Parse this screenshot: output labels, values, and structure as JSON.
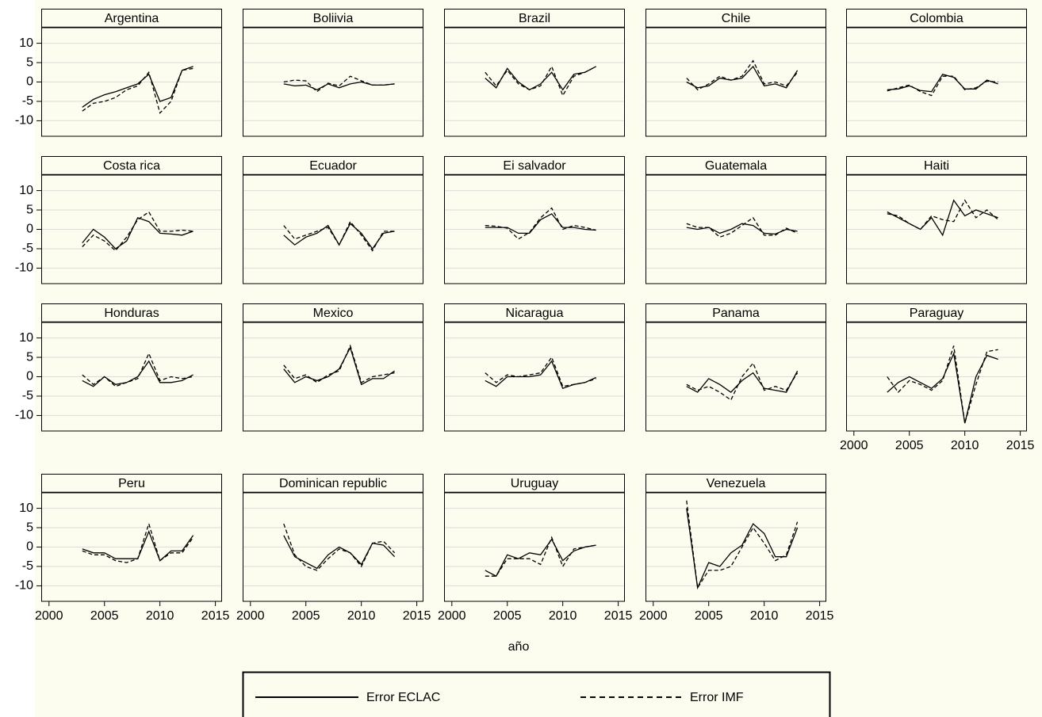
{
  "axes": {
    "xlim": [
      1999.3,
      2015.6
    ],
    "xticks": [
      2000,
      2005,
      2010,
      2015
    ],
    "ylim": [
      -14,
      14
    ],
    "yticks": [
      -10,
      -5,
      0,
      5,
      10
    ],
    "grid": true,
    "xlabel": "año"
  },
  "chart_data": [
    {
      "type": "line",
      "title": "Argentina",
      "x": [
        2003,
        2004,
        2005,
        2006,
        2007,
        2008,
        2009,
        2010,
        2011,
        2012,
        2013
      ],
      "series": [
        {
          "name": "Error ECLAC",
          "color": "#000000",
          "dash": "solid",
          "values": [
            -6.5,
            -4.5,
            -3.3,
            -2.5,
            -1.5,
            -0.5,
            2,
            -5,
            -4,
            3,
            4
          ]
        },
        {
          "name": "Error IMF",
          "color": "#000000",
          "dash": "dashed",
          "values": [
            -7.5,
            -5.5,
            -5,
            -4,
            -2,
            -1,
            2.5,
            -8,
            -5,
            3,
            3.5
          ]
        }
      ]
    },
    {
      "type": "line",
      "title": "Boliivia",
      "x": [
        2003,
        2004,
        2005,
        2006,
        2007,
        2008,
        2009,
        2010,
        2011,
        2012,
        2013
      ],
      "series": [
        {
          "name": "Error ECLAC",
          "color": "#000000",
          "dash": "solid",
          "values": [
            -0.5,
            -1,
            -0.8,
            -2,
            -0.5,
            -1.5,
            -0.5,
            0,
            -0.8,
            -0.8,
            -0.5
          ]
        },
        {
          "name": "Error IMF",
          "color": "#000000",
          "dash": "dashed",
          "values": [
            0,
            0.5,
            0.3,
            -2.5,
            -0.3,
            -1,
            1.5,
            0.3,
            -0.8,
            -0.8,
            -0.5
          ]
        }
      ]
    },
    {
      "type": "line",
      "title": "Brazil",
      "x": [
        2003,
        2004,
        2005,
        2006,
        2007,
        2008,
        2009,
        2010,
        2011,
        2012,
        2013
      ],
      "series": [
        {
          "name": "Error ECLAC",
          "color": "#000000",
          "dash": "solid",
          "values": [
            1,
            -1.5,
            3.5,
            0,
            -2,
            -0.5,
            2.5,
            -2,
            2,
            2.5,
            4
          ]
        },
        {
          "name": "Error IMF",
          "color": "#000000",
          "dash": "dashed",
          "values": [
            2.5,
            -1,
            3,
            -0.5,
            -2,
            -1,
            4,
            -3.5,
            1.5,
            2.5,
            4
          ]
        }
      ]
    },
    {
      "type": "line",
      "title": "Chile",
      "x": [
        2003,
        2004,
        2005,
        2006,
        2007,
        2008,
        2009,
        2010,
        2011,
        2012,
        2013
      ],
      "series": [
        {
          "name": "Error ECLAC",
          "color": "#000000",
          "dash": "solid",
          "values": [
            0,
            -1.5,
            -1,
            1,
            0.5,
            1,
            4,
            -1,
            -0.5,
            -1.5,
            3
          ]
        },
        {
          "name": "Error IMF",
          "color": "#000000",
          "dash": "dashed",
          "values": [
            1,
            -2,
            -0.5,
            1.5,
            0.5,
            1.5,
            5.5,
            -0.5,
            0,
            -1,
            2.5
          ]
        }
      ]
    },
    {
      "type": "line",
      "title": "Colombia",
      "x": [
        2003,
        2004,
        2005,
        2006,
        2007,
        2008,
        2009,
        2010,
        2011,
        2012,
        2013
      ],
      "series": [
        {
          "name": "Error ECLAC",
          "color": "#000000",
          "dash": "solid",
          "values": [
            -2,
            -1.8,
            -1,
            -2.2,
            -2.5,
            2,
            1.2,
            -1.8,
            -1.8,
            0.5,
            -0.5
          ]
        },
        {
          "name": "Error IMF",
          "color": "#000000",
          "dash": "dashed",
          "values": [
            -2.3,
            -1.5,
            -0.8,
            -2.5,
            -3.5,
            1.5,
            1.5,
            -2,
            -1.5,
            0.2,
            0
          ]
        }
      ]
    },
    {
      "type": "line",
      "title": "Costa rica",
      "x": [
        2003,
        2004,
        2005,
        2006,
        2007,
        2008,
        2009,
        2010,
        2011,
        2012,
        2013
      ],
      "series": [
        {
          "name": "Error ECLAC",
          "color": "#000000",
          "dash": "solid",
          "values": [
            -3.5,
            0,
            -2,
            -5,
            -3,
            3,
            2,
            -1,
            -1.2,
            -1.5,
            -0.5
          ]
        },
        {
          "name": "Error IMF",
          "color": "#000000",
          "dash": "dashed",
          "values": [
            -4.5,
            -1.5,
            -3,
            -5.5,
            -2,
            2.5,
            4.5,
            -0.5,
            -0.5,
            -0.2,
            -0.5
          ]
        }
      ]
    },
    {
      "type": "line",
      "title": "Ecuador",
      "x": [
        2003,
        2004,
        2005,
        2006,
        2007,
        2008,
        2009,
        2010,
        2011,
        2012,
        2013
      ],
      "series": [
        {
          "name": "Error ECLAC",
          "color": "#000000",
          "dash": "solid",
          "values": [
            -1.5,
            -4,
            -2,
            -1,
            1,
            -4,
            1.5,
            -1,
            -5,
            -1,
            -0.5
          ]
        },
        {
          "name": "Error IMF",
          "color": "#000000",
          "dash": "dashed",
          "values": [
            1,
            -2.5,
            -1.5,
            -0.5,
            0.5,
            -4,
            2,
            -1.5,
            -5.5,
            -0.5,
            -0.5
          ]
        }
      ]
    },
    {
      "type": "line",
      "title": "Ei salvador",
      "x": [
        2003,
        2004,
        2005,
        2006,
        2007,
        2008,
        2009,
        2010,
        2011,
        2012,
        2013
      ],
      "series": [
        {
          "name": "Error ECLAC",
          "color": "#000000",
          "dash": "solid",
          "values": [
            0.5,
            0.5,
            0.5,
            -1,
            -1,
            2.5,
            4,
            0.5,
            0.5,
            0,
            -0.2
          ]
        },
        {
          "name": "Error IMF",
          "color": "#000000",
          "dash": "dashed",
          "values": [
            1,
            0.8,
            0.3,
            -2.5,
            -0.8,
            3,
            5.5,
            0,
            1,
            0.5,
            -0.2
          ]
        }
      ]
    },
    {
      "type": "line",
      "title": "Guatemala",
      "x": [
        2003,
        2004,
        2005,
        2006,
        2007,
        2008,
        2009,
        2010,
        2011,
        2012,
        2013
      ],
      "series": [
        {
          "name": "Error ECLAC",
          "color": "#000000",
          "dash": "solid",
          "values": [
            0.5,
            0,
            0.5,
            -1,
            0,
            1.5,
            1,
            -1,
            -1.2,
            0,
            -0.5
          ]
        },
        {
          "name": "Error IMF",
          "color": "#000000",
          "dash": "dashed",
          "values": [
            1.5,
            0.5,
            0.5,
            -2,
            -1,
            1,
            3,
            -1.5,
            -1.5,
            0.3,
            -1
          ]
        }
      ]
    },
    {
      "type": "line",
      "title": "Haiti",
      "x": [
        2003,
        2004,
        2005,
        2006,
        2007,
        2008,
        2009,
        2010,
        2011,
        2012,
        2013
      ],
      "series": [
        {
          "name": "Error ECLAC",
          "color": "#000000",
          "dash": "solid",
          "values": [
            4.5,
            3,
            1.5,
            0,
            3,
            -1.5,
            7.5,
            3.5,
            5,
            4,
            3
          ]
        },
        {
          "name": "Error IMF",
          "color": "#000000",
          "dash": "dashed",
          "values": [
            4,
            3.5,
            1.5,
            0,
            3.5,
            2.5,
            2,
            7.5,
            3,
            5,
            2.5
          ]
        }
      ]
    },
    {
      "type": "line",
      "title": "Honduras",
      "x": [
        2003,
        2004,
        2005,
        2006,
        2007,
        2008,
        2009,
        2010,
        2011,
        2012,
        2013
      ],
      "series": [
        {
          "name": "Error ECLAC",
          "color": "#000000",
          "dash": "solid",
          "values": [
            -1,
            -2.5,
            0,
            -2,
            -1.5,
            0,
            4,
            -1.5,
            -1.5,
            -1,
            0.5
          ]
        },
        {
          "name": "Error IMF",
          "color": "#000000",
          "dash": "dashed",
          "values": [
            0.5,
            -2,
            0,
            -2.5,
            -1.5,
            -0.5,
            6,
            -1,
            0,
            -0.5,
            0
          ]
        }
      ]
    },
    {
      "type": "line",
      "title": "Mexico",
      "x": [
        2003,
        2004,
        2005,
        2006,
        2007,
        2008,
        2009,
        2010,
        2011,
        2012,
        2013
      ],
      "series": [
        {
          "name": "Error ECLAC",
          "color": "#000000",
          "dash": "solid",
          "values": [
            2,
            -1.5,
            0,
            -1,
            0,
            2,
            7.5,
            -2,
            -0.5,
            -0.5,
            1.5
          ]
        },
        {
          "name": "Error IMF",
          "color": "#000000",
          "dash": "dashed",
          "values": [
            3,
            -0.5,
            0.5,
            -1.5,
            0.5,
            1.5,
            8,
            -1.5,
            0,
            0.5,
            1
          ]
        }
      ]
    },
    {
      "type": "line",
      "title": "Nicaragua",
      "x": [
        2003,
        2004,
        2005,
        2006,
        2007,
        2008,
        2009,
        2010,
        2011,
        2012,
        2013
      ],
      "series": [
        {
          "name": "Error ECLAC",
          "color": "#000000",
          "dash": "solid",
          "values": [
            -1,
            -2.5,
            0,
            0,
            0,
            0.5,
            4,
            -3,
            -2,
            -1.5,
            -0.2
          ]
        },
        {
          "name": "Error IMF",
          "color": "#000000",
          "dash": "dashed",
          "values": [
            1,
            -1.5,
            0.5,
            0,
            0.5,
            1,
            5,
            -2.5,
            -2,
            -1.5,
            -0.5
          ]
        }
      ]
    },
    {
      "type": "line",
      "title": "Panama",
      "x": [
        2003,
        2004,
        2005,
        2006,
        2007,
        2008,
        2009,
        2010,
        2011,
        2012,
        2013
      ],
      "series": [
        {
          "name": "Error ECLAC",
          "color": "#000000",
          "dash": "solid",
          "values": [
            -2.5,
            -4,
            -0.5,
            -2,
            -4,
            -1,
            1,
            -3,
            -3.5,
            -4,
            1.5
          ]
        },
        {
          "name": "Error IMF",
          "color": "#000000",
          "dash": "dashed",
          "values": [
            -2,
            -3.5,
            -2.5,
            -4,
            -6,
            0,
            3.5,
            -3.5,
            -2.5,
            -3.5,
            1
          ]
        }
      ]
    },
    {
      "type": "line",
      "title": "Paraguay",
      "x": [
        2003,
        2004,
        2005,
        2006,
        2007,
        2008,
        2009,
        2010,
        2011,
        2012,
        2013
      ],
      "series": [
        {
          "name": "Error ECLAC",
          "color": "#000000",
          "dash": "solid",
          "values": [
            -4,
            -1.5,
            0,
            -1.5,
            -3,
            -0.5,
            6,
            -12,
            0,
            5.5,
            4.5
          ]
        },
        {
          "name": "Error IMF",
          "color": "#000000",
          "dash": "dashed",
          "values": [
            0,
            -4,
            -1,
            -2,
            -3.5,
            -1,
            8,
            -12,
            -2,
            6.5,
            7
          ]
        }
      ]
    },
    {
      "type": "line",
      "title": "Peru",
      "x": [
        2003,
        2004,
        2005,
        2006,
        2007,
        2008,
        2009,
        2010,
        2011,
        2012,
        2013
      ],
      "series": [
        {
          "name": "Error ECLAC",
          "color": "#000000",
          "dash": "solid",
          "values": [
            -0.5,
            -1.5,
            -1.5,
            -3,
            -3,
            -3,
            4,
            -3.5,
            -1,
            -1,
            3
          ]
        },
        {
          "name": "Error IMF",
          "color": "#000000",
          "dash": "dashed",
          "values": [
            -1,
            -2,
            -2,
            -3.5,
            -4,
            -3,
            6,
            -3.5,
            -1.5,
            -1.5,
            2.5
          ]
        }
      ]
    },
    {
      "type": "line",
      "title": "Dominican republic",
      "x": [
        2003,
        2004,
        2005,
        2006,
        2007,
        2008,
        2009,
        2010,
        2011,
        2012,
        2013
      ],
      "series": [
        {
          "name": "Error ECLAC",
          "color": "#000000",
          "dash": "solid",
          "values": [
            3,
            -2.5,
            -4,
            -5.5,
            -2,
            0,
            -1.5,
            -4.5,
            1,
            0.5,
            -2.5
          ]
        },
        {
          "name": "Error IMF",
          "color": "#000000",
          "dash": "dashed",
          "values": [
            6,
            -2,
            -5,
            -6,
            -3,
            -0.5,
            -1.5,
            -5,
            1,
            1.5,
            -1.5
          ]
        }
      ]
    },
    {
      "type": "line",
      "title": "Uruguay",
      "x": [
        2003,
        2004,
        2005,
        2006,
        2007,
        2008,
        2009,
        2010,
        2011,
        2012,
        2013
      ],
      "series": [
        {
          "name": "Error ECLAC",
          "color": "#000000",
          "dash": "solid",
          "values": [
            -6,
            -7.5,
            -2,
            -3,
            -1.5,
            -2,
            2,
            -3.5,
            -1,
            0,
            0.5
          ]
        },
        {
          "name": "Error IMF",
          "color": "#000000",
          "dash": "dashed",
          "values": [
            -7.5,
            -7.5,
            -3,
            -3,
            -3,
            -4.5,
            2.5,
            -5,
            -0.5,
            0,
            0.5
          ]
        }
      ]
    },
    {
      "type": "line",
      "title": "Venezuela",
      "x": [
        2003,
        2004,
        2005,
        2006,
        2007,
        2008,
        2009,
        2010,
        2011,
        2012,
        2013
      ],
      "series": [
        {
          "name": "Error ECLAC",
          "color": "#000000",
          "dash": "solid",
          "values": [
            10,
            -10.5,
            -4,
            -5,
            -1.5,
            0.5,
            6,
            3.5,
            -2.5,
            -2.5,
            5
          ]
        },
        {
          "name": "Error IMF",
          "color": "#000000",
          "dash": "dashed",
          "values": [
            12,
            -10.5,
            -6,
            -6,
            -5,
            0,
            5,
            1,
            -3.5,
            -2,
            6.5
          ]
        }
      ]
    }
  ]
}
